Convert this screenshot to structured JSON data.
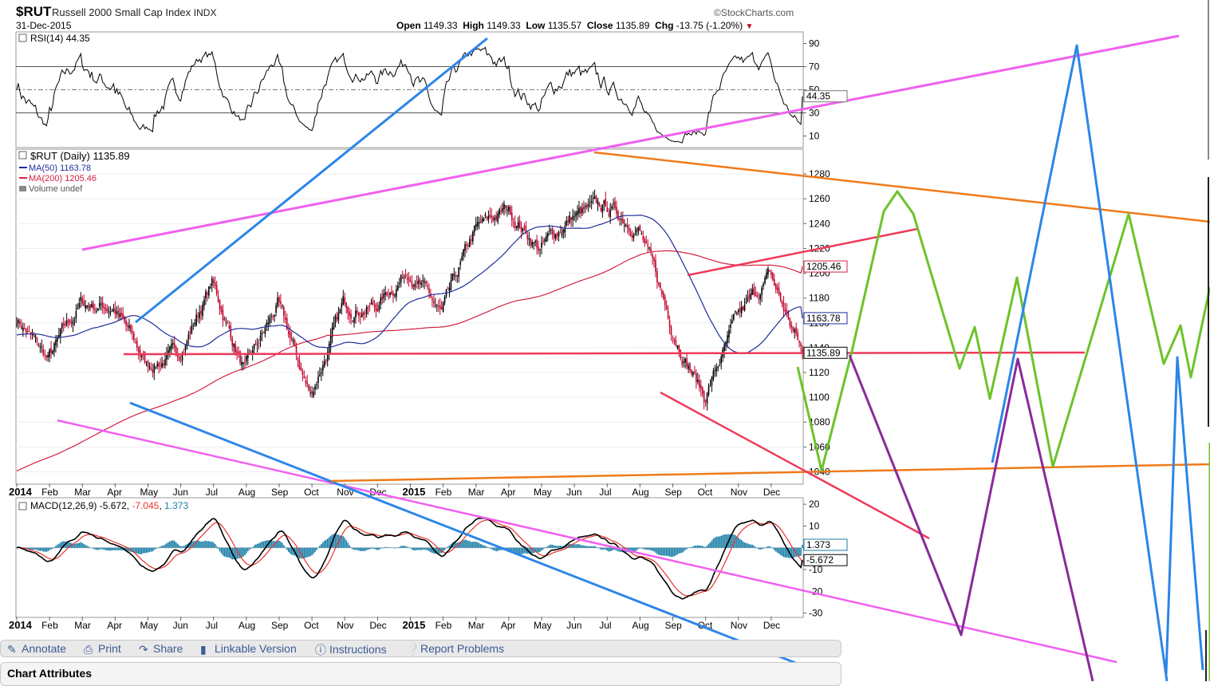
{
  "header": {
    "symbol": "$RUT",
    "name": "Russell 2000 Small Cap Index",
    "exchange": "INDX",
    "date": "31-Dec-2015",
    "brand": "©StockCharts.com",
    "open_label": "Open",
    "open": "1149.33",
    "high_label": "High",
    "high": "1149.33",
    "low_label": "Low",
    "low": "1135.57",
    "close_label": "Close",
    "close": "1135.89",
    "chg_label": "Chg",
    "chg": "-13.75 (-1.20%)"
  },
  "toolbar": {
    "annotate": "Annotate",
    "print": "Print",
    "share": "Share",
    "linkable": "Linkable Version",
    "instructions": "Instructions",
    "report": "Report Problems"
  },
  "attributes_title": "Chart Attributes",
  "colors": {
    "price_up": "#000000",
    "price_down": "#c0002a",
    "ma50": "#1f2d9c",
    "ma200": "#d42040",
    "rsi": "#000000",
    "macd": "#000000",
    "signal": "#e8332a",
    "hist": "#1a7fa8",
    "magenta": "#f060f0",
    "blue": "#2b86e8",
    "orange": "#f07a1a",
    "red": "#ee3a5a",
    "green": "#6cc32a",
    "purple": "#8a2a9a"
  },
  "chart_data": [
    {
      "type": "line",
      "panel": "rsi",
      "legend": "RSI(14)",
      "legend_value": "44.35",
      "ylim": [
        0,
        100
      ],
      "ticks": [
        90,
        70,
        50,
        30,
        10
      ],
      "reference_lines": [
        70,
        30
      ],
      "last_value_label": "44.35"
    },
    {
      "type": "candlestick",
      "panel": "price",
      "legend_symbol": "$RUT (Daily)",
      "legend_value": "1135.89",
      "ylim": [
        1030,
        1300
      ],
      "ticks": [
        1280,
        1260,
        1240,
        1220,
        1200,
        1180,
        1160,
        1140,
        1120,
        1100,
        1080,
        1060,
        1040
      ],
      "x_labels": [
        "2014",
        "Feb",
        "Mar",
        "Apr",
        "May",
        "Jun",
        "Jul",
        "Aug",
        "Sep",
        "Oct",
        "Nov",
        "Dec",
        "2015",
        "Feb",
        "Mar",
        "Apr",
        "May",
        "Jun",
        "Jul",
        "Aug",
        "Sep",
        "Oct",
        "Nov",
        "Dec"
      ],
      "series": [
        {
          "name": "MA(50)",
          "last": "1163.78"
        },
        {
          "name": "MA(200)",
          "last": "1205.46"
        },
        {
          "name": "Volume",
          "last": "undef"
        }
      ],
      "monthly_closes": [
        {
          "month": "2014-01",
          "value": 1130
        },
        {
          "month": "2014-02",
          "value": 1175
        },
        {
          "month": "2014-03",
          "value": 1173
        },
        {
          "month": "2014-04",
          "value": 1126
        },
        {
          "month": "2014-05",
          "value": 1135
        },
        {
          "month": "2014-06",
          "value": 1192
        },
        {
          "month": "2014-07",
          "value": 1120
        },
        {
          "month": "2014-08",
          "value": 1174
        },
        {
          "month": "2014-09",
          "value": 1101
        },
        {
          "month": "2014-10",
          "value": 1173
        },
        {
          "month": "2014-11",
          "value": 1173
        },
        {
          "month": "2014-12",
          "value": 1204
        },
        {
          "month": "2015-01",
          "value": 1165
        },
        {
          "month": "2015-02",
          "value": 1233
        },
        {
          "month": "2015-03",
          "value": 1252
        },
        {
          "month": "2015-04",
          "value": 1220
        },
        {
          "month": "2015-05",
          "value": 1246
        },
        {
          "month": "2015-06",
          "value": 1253
        },
        {
          "month": "2015-07",
          "value": 1238
        },
        {
          "month": "2015-08",
          "value": 1159
        },
        {
          "month": "2015-09",
          "value": 1100
        },
        {
          "month": "2015-10",
          "value": 1161
        },
        {
          "month": "2015-11",
          "value": 1198
        },
        {
          "month": "2015-12",
          "value": 1136
        }
      ],
      "value_labels": [
        "1205.46",
        "1163.78",
        "1135.89"
      ]
    },
    {
      "type": "line",
      "panel": "macd",
      "legend": "MACD(12,26,9)",
      "values": {
        "macd": "-5.672",
        "signal": "-7.045",
        "histogram": "1.373"
      },
      "ylim": [
        -32,
        23
      ],
      "ticks": [
        20,
        10,
        0,
        -10,
        -20,
        -30
      ],
      "x_labels": [
        "2014",
        "Feb",
        "Mar",
        "Apr",
        "May",
        "Jun",
        "Jul",
        "Aug",
        "Sep",
        "Oct",
        "Nov",
        "Dec",
        "2015",
        "Feb",
        "Mar",
        "Apr",
        "May",
        "Jun",
        "Jul",
        "Aug",
        "Sep",
        "Oct",
        "Nov",
        "Dec"
      ],
      "value_labels": [
        "1.373",
        "-5.672"
      ]
    }
  ]
}
